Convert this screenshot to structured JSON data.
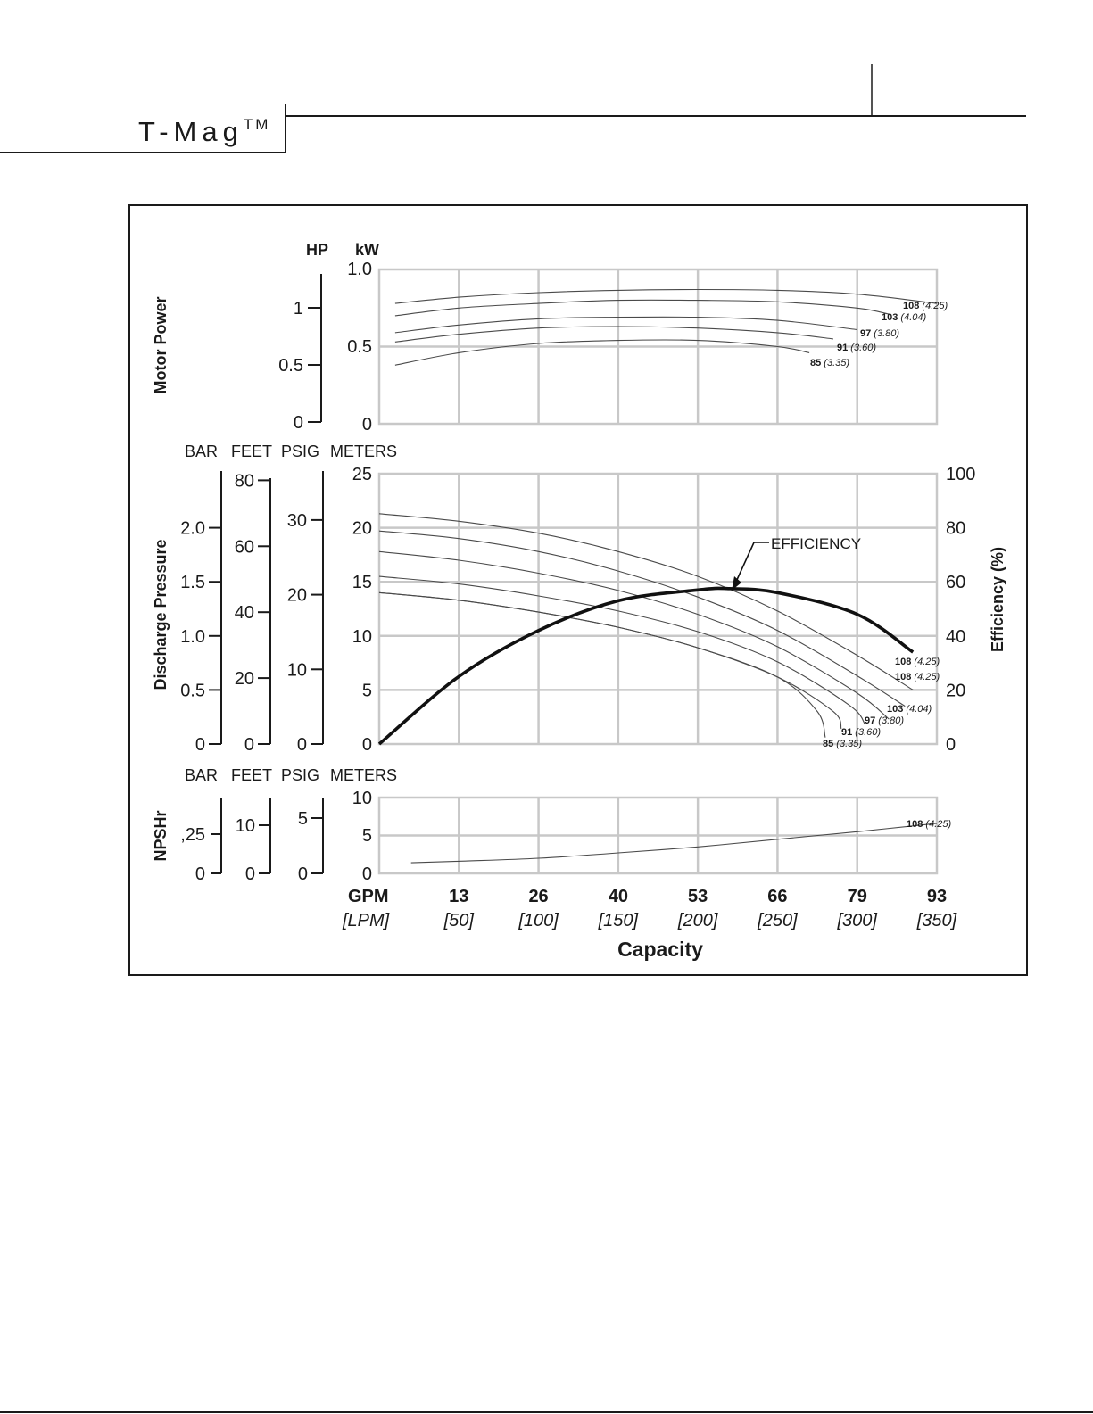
{
  "header": {
    "brand": "T-Mag",
    "trademark": "TM"
  },
  "chart_data": {
    "type": "line",
    "x": {
      "gpm_label": "GPM",
      "lpm_label": "[LPM]",
      "title": "Capacity",
      "ticks_gpm": [
        "13",
        "26",
        "40",
        "53",
        "66",
        "79",
        "93"
      ],
      "ticks_lpm": [
        "[50]",
        "[100]",
        "[150]",
        "[200]",
        "[250]",
        "[300]",
        "[350]"
      ],
      "lpm_range": [
        0,
        350
      ]
    },
    "panels": {
      "motor_power": {
        "title": "Motor Power",
        "hp_label": "HP",
        "kw_label": "kW",
        "hp_ticks": [
          "1",
          "0.5",
          "0"
        ],
        "kw_ticks": [
          "1.0",
          "0.5",
          "0"
        ],
        "kw_range": [
          0,
          1.0
        ],
        "series": [
          {
            "label_num": "108",
            "label_kw": "(4.25)",
            "lpm": [
              10,
              50,
              100,
              150,
              200,
              250,
              300,
              350
            ],
            "kw": [
              0.78,
              0.82,
              0.85,
              0.865,
              0.87,
              0.865,
              0.84,
              0.78
            ]
          },
          {
            "label_num": "103",
            "label_kw": "(4.04)",
            "lpm": [
              10,
              50,
              100,
              150,
              200,
              250,
              300,
              320
            ],
            "kw": [
              0.7,
              0.75,
              0.78,
              0.8,
              0.8,
              0.79,
              0.75,
              0.71
            ]
          },
          {
            "label_num": "97",
            "label_kw": "(3.80)",
            "lpm": [
              10,
              50,
              100,
              150,
              200,
              250,
              300
            ],
            "kw": [
              0.59,
              0.64,
              0.68,
              0.69,
              0.69,
              0.67,
              0.61
            ]
          },
          {
            "label_num": "91",
            "label_kw": "(3.60)",
            "lpm": [
              10,
              50,
              100,
              150,
              200,
              250,
              285
            ],
            "kw": [
              0.53,
              0.58,
              0.62,
              0.63,
              0.62,
              0.59,
              0.55
            ]
          },
          {
            "label_num": "85",
            "label_kw": "(3.35)",
            "lpm": [
              10,
              50,
              100,
              150,
              200,
              250,
              270
            ],
            "kw": [
              0.38,
              0.46,
              0.52,
              0.54,
              0.54,
              0.5,
              0.46
            ]
          }
        ]
      },
      "discharge": {
        "title": "Discharge Pressure",
        "unit_labels": [
          "BAR",
          "FEET",
          "PSIG",
          "METERS"
        ],
        "bar_ticks": [
          "2.0",
          "1.5",
          "1.0",
          "0.5",
          "0"
        ],
        "feet_ticks": [
          "80",
          "60",
          "40",
          "20",
          "0"
        ],
        "psig_ticks": [
          "30",
          "20",
          "10",
          "0"
        ],
        "meters_ticks": [
          "25",
          "20",
          "15",
          "10",
          "5",
          "0"
        ],
        "meters_range": [
          0,
          25
        ],
        "efficiency_title": "Efficiency (%)",
        "efficiency_ticks": [
          "100",
          "80",
          "60",
          "40",
          "20",
          "0"
        ],
        "efficiency_range": [
          0,
          100
        ],
        "efficiency_label": "EFFICIENCY",
        "efficiency": {
          "lpm": [
            0,
            50,
            100,
            150,
            200,
            220,
            250,
            300,
            335
          ],
          "pct": [
            0,
            25,
            42,
            53,
            57,
            57.5,
            56,
            48,
            34
          ]
        },
        "series": [
          {
            "label_num": "108",
            "label_kw": "(4.25)",
            "lpm": [
              0,
              50,
              100,
              150,
              200,
              250,
              300,
              335
            ],
            "meters": [
              21.3,
              20.6,
              19.5,
              17.8,
              15.5,
              12.3,
              8.2,
              5.0
            ]
          },
          {
            "label_num": "108",
            "label_kw": "(4.25)",
            "lpm": [
              0,
              50,
              100,
              150,
              200,
              250,
              300,
              330
            ],
            "meters": [
              19.7,
              19.0,
              17.8,
              16.0,
              13.6,
              10.5,
              6.3,
              3.5
            ]
          },
          {
            "label_num": "103",
            "label_kw": "(4.04)",
            "lpm": [
              0,
              50,
              100,
              150,
              200,
              250,
              300,
              320
            ],
            "meters": [
              17.8,
              17.0,
              15.8,
              14.2,
              12.0,
              9.0,
              4.7,
              2.3
            ]
          },
          {
            "label_num": "97",
            "label_kw": "(3.80)",
            "lpm": [
              0,
              50,
              100,
              150,
              200,
              250,
              295,
              305
            ],
            "meters": [
              15.5,
              14.8,
              13.7,
              12.3,
              10.4,
              7.6,
              3.6,
              1.8
            ]
          },
          {
            "label_num": "91",
            "label_kw": "(3.60)",
            "lpm": [
              0,
              50,
              100,
              150,
              200,
              250,
              285,
              290
            ],
            "meters": [
              14.0,
              13.3,
              12.2,
              10.8,
              8.9,
              6.2,
              3.0,
              1.4
            ]
          },
          {
            "label_num": "85",
            "label_kw": "(3.35)",
            "lpm": [
              0,
              50,
              100,
              150,
              200,
              250,
              275,
              280
            ],
            "meters": [
              14.0,
              13.3,
              12.2,
              10.8,
              8.9,
              6.2,
              3.0,
              0.6
            ]
          }
        ]
      },
      "npshr": {
        "title": "NPSHr",
        "unit_labels": [
          "BAR",
          "FEET",
          "PSIG",
          "METERS"
        ],
        "bar_ticks": [
          ",25",
          "0"
        ],
        "feet_ticks": [
          "10",
          "0"
        ],
        "psig_ticks": [
          "5",
          "0"
        ],
        "meters_ticks": [
          "10",
          "5",
          "0"
        ],
        "meters_range": [
          0,
          10
        ],
        "series": [
          {
            "label_num": "108",
            "label_kw": "(4.25)",
            "lpm": [
              20,
              50,
              100,
              150,
              200,
              250,
              300,
              350
            ],
            "meters": [
              1.4,
              1.6,
              2.0,
              2.7,
              3.5,
              4.5,
              5.5,
              6.6
            ]
          }
        ]
      }
    }
  }
}
